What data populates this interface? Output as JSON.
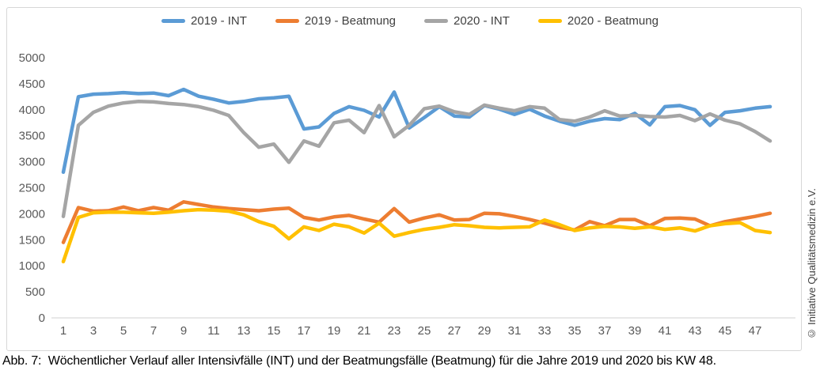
{
  "caption": "Abb. 7:  Wöchentlicher Verlauf aller Intensivfälle (INT) und der Beatmungsfälle (Beatmung) für die Jahre 2019 und 2020 bis KW 48.",
  "copyright": "© Initiative Qualitätsmedizin e.V.",
  "colors": {
    "axis_line": "#d9d9d9",
    "tick_label": "#595959",
    "legend_label": "#404040",
    "frame_border": "#d7d7d7"
  },
  "chart_data": {
    "type": "line",
    "title": "",
    "xlabel": "",
    "ylabel": "",
    "grid": false,
    "legend_position": "top",
    "ylim": [
      0,
      5000
    ],
    "yticks": [
      0,
      500,
      1000,
      1500,
      2000,
      2500,
      3000,
      3500,
      4000,
      4500,
      5000
    ],
    "xticks": [
      1,
      3,
      5,
      7,
      9,
      11,
      13,
      15,
      17,
      19,
      21,
      23,
      25,
      27,
      29,
      31,
      33,
      35,
      37,
      39,
      41,
      43,
      45,
      47
    ],
    "x": [
      1,
      2,
      3,
      4,
      5,
      6,
      7,
      8,
      9,
      10,
      11,
      12,
      13,
      14,
      15,
      16,
      17,
      18,
      19,
      20,
      21,
      22,
      23,
      24,
      25,
      26,
      27,
      28,
      29,
      30,
      31,
      32,
      33,
      34,
      35,
      36,
      37,
      38,
      39,
      40,
      41,
      42,
      43,
      44,
      45,
      46,
      47,
      48
    ],
    "series": [
      {
        "name": "2019 - INT",
        "color": "#5B9BD5",
        "values": [
          2800,
          4250,
          4300,
          4310,
          4330,
          4310,
          4320,
          4270,
          4390,
          4260,
          4200,
          4130,
          4160,
          4210,
          4230,
          4260,
          3630,
          3670,
          3930,
          4060,
          3990,
          3860,
          4340,
          3650,
          3850,
          4060,
          3880,
          3860,
          4080,
          4010,
          3910,
          4010,
          3880,
          3780,
          3700,
          3780,
          3830,
          3810,
          3930,
          3710,
          4060,
          4080,
          4000,
          3700,
          3950,
          3980,
          4030,
          4060
        ]
      },
      {
        "name": "2019 - Beatmung",
        "color": "#ED7D31",
        "values": [
          1450,
          2120,
          2050,
          2060,
          2130,
          2060,
          2120,
          2070,
          2230,
          2180,
          2130,
          2100,
          2080,
          2060,
          2090,
          2110,
          1930,
          1880,
          1940,
          1970,
          1900,
          1840,
          2100,
          1840,
          1920,
          1980,
          1880,
          1890,
          2010,
          2000,
          1950,
          1890,
          1820,
          1740,
          1690,
          1850,
          1770,
          1890,
          1890,
          1770,
          1910,
          1920,
          1900,
          1770,
          1850,
          1900,
          1950,
          2010
        ]
      },
      {
        "name": "2020 - INT",
        "color": "#A5A5A5",
        "values": [
          1950,
          3700,
          3950,
          4070,
          4130,
          4160,
          4150,
          4120,
          4100,
          4060,
          3990,
          3890,
          3560,
          3280,
          3340,
          2990,
          3400,
          3300,
          3750,
          3800,
          3560,
          4080,
          3480,
          3700,
          4020,
          4070,
          3960,
          3910,
          4090,
          4030,
          3980,
          4060,
          4030,
          3810,
          3780,
          3860,
          3980,
          3880,
          3890,
          3870,
          3860,
          3890,
          3790,
          3920,
          3800,
          3730,
          3580,
          3400
        ]
      },
      {
        "name": "2020 - Beatmung",
        "color": "#FFC000",
        "values": [
          1080,
          1930,
          2020,
          2030,
          2030,
          2020,
          2010,
          2030,
          2060,
          2080,
          2070,
          2050,
          1980,
          1850,
          1760,
          1520,
          1750,
          1680,
          1800,
          1750,
          1630,
          1820,
          1570,
          1640,
          1700,
          1740,
          1790,
          1770,
          1740,
          1730,
          1740,
          1750,
          1880,
          1790,
          1680,
          1730,
          1760,
          1750,
          1720,
          1750,
          1700,
          1730,
          1670,
          1770,
          1810,
          1830,
          1680,
          1640
        ]
      }
    ]
  }
}
